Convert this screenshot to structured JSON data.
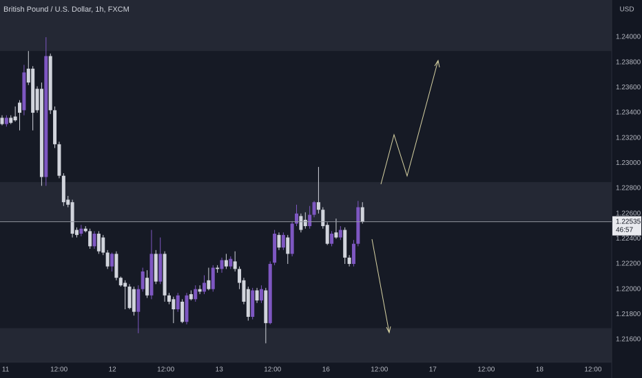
{
  "chart_data": {
    "type": "candlestick",
    "title": "British Pound / U.S. Dollar, 1h, FXCM",
    "currency": "USD",
    "open": [
      1.2336,
      1.2331,
      1.2336,
      1.2337,
      1.2348,
      1.2342,
      1.2375,
      1.2375,
      1.2359,
      1.2359,
      1.2289,
      1.2385,
      1.2342,
      1.2315,
      1.229,
      1.2271,
      1.2269,
      1.2247,
      1.2244,
      1.2248,
      1.2246,
      1.2234,
      1.2244,
      1.2241,
      1.2229,
      1.2218,
      1.2228,
      1.2209,
      1.2205,
      1.2202,
      1.22,
      1.2182,
      1.22,
      1.2209,
      1.2195,
      1.2228,
      1.2206,
      1.2228,
      1.2195,
      1.2192,
      1.2184,
      1.219,
      1.2174,
      1.2196,
      1.2192,
      1.22,
      1.2198,
      1.2207,
      1.22,
      1.2217,
      1.2216,
      1.2223,
      1.2218,
      1.2222,
      1.2216,
      1.2207,
      1.22,
      1.2178,
      1.2199,
      1.2191,
      1.2199,
      1.2173,
      1.2221,
      1.2243,
      1.2233,
      1.2241,
      1.2228,
      1.2252,
      1.2258,
      1.2255,
      1.225,
      1.2259,
      1.2269,
      1.2263,
      1.2251,
      1.2236,
      1.2245,
      1.2241,
      1.2247,
      1.2225,
      1.222,
      1.2236,
      1.2265
    ],
    "high": [
      1.2338,
      1.2338,
      1.2338,
      1.2345,
      1.235,
      1.2378,
      1.2389,
      1.2377,
      1.2361,
      1.2364,
      1.24,
      1.2387,
      1.2345,
      1.2317,
      1.2292,
      1.2274,
      1.2271,
      1.2249,
      1.2251,
      1.225,
      1.2248,
      1.2246,
      1.2246,
      1.2243,
      1.2231,
      1.2229,
      1.223,
      1.221,
      1.2207,
      1.2204,
      1.2202,
      1.2203,
      1.2217,
      1.2215,
      1.2247,
      1.2231,
      1.2241,
      1.223,
      1.2197,
      1.2194,
      1.2197,
      1.2192,
      1.2197,
      1.2199,
      1.2203,
      1.2203,
      1.2211,
      1.2217,
      1.2219,
      1.2219,
      1.2225,
      1.2228,
      1.2226,
      1.223,
      1.2218,
      1.2209,
      1.2202,
      1.2201,
      1.2201,
      1.2203,
      1.2201,
      1.2222,
      1.2247,
      1.2245,
      1.2245,
      1.2243,
      1.2254,
      1.2267,
      1.226,
      1.2261,
      1.2266,
      1.227,
      1.2297,
      1.2265,
      1.2253,
      1.2246,
      1.2256,
      1.225,
      1.2249,
      1.2227,
      1.2239,
      1.227,
      1.2269
    ],
    "low": [
      1.233,
      1.2329,
      1.2331,
      1.2333,
      1.2326,
      1.2338,
      1.2362,
      1.2326,
      1.234,
      1.2282,
      1.2282,
      1.2339,
      1.2312,
      1.2288,
      1.2266,
      1.2265,
      1.2241,
      1.2241,
      1.2242,
      1.2245,
      1.2232,
      1.2232,
      1.2228,
      1.2227,
      1.2216,
      1.2214,
      1.2207,
      1.2202,
      1.2184,
      1.2184,
      1.2179,
      1.2165,
      1.2198,
      1.2193,
      1.2192,
      1.2204,
      1.2204,
      1.219,
      1.2188,
      1.2173,
      1.2182,
      1.2173,
      1.2172,
      1.2191,
      1.219,
      1.2196,
      1.2196,
      1.2199,
      1.2198,
      1.2213,
      1.2213,
      1.2216,
      1.2216,
      1.2214,
      1.22,
      1.2188,
      1.2175,
      1.2176,
      1.2189,
      1.2189,
      1.2157,
      1.2172,
      1.2219,
      1.2231,
      1.2231,
      1.222,
      1.2226,
      1.225,
      1.2245,
      1.2248,
      1.2248,
      1.2257,
      1.226,
      1.2248,
      1.2235,
      1.2234,
      1.224,
      1.2239,
      1.222,
      1.2218,
      1.2218,
      1.2234,
      1.2252
    ],
    "close": [
      1.2331,
      1.2336,
      1.2332,
      1.2334,
      1.234,
      1.2372,
      1.2364,
      1.234,
      1.2342,
      1.2289,
      1.2385,
      1.2342,
      1.2315,
      1.229,
      1.2269,
      1.2267,
      1.2244,
      1.2243,
      1.2248,
      1.2246,
      1.2234,
      1.2244,
      1.223,
      1.2229,
      1.2218,
      1.2228,
      1.2209,
      1.2203,
      1.2202,
      1.2185,
      1.2182,
      1.22,
      1.2214,
      1.2195,
      1.2228,
      1.2206,
      1.2228,
      1.2195,
      1.219,
      1.2184,
      1.2195,
      1.2174,
      1.2195,
      1.2192,
      1.22,
      1.2198,
      1.2205,
      1.22,
      1.2217,
      1.2216,
      1.2223,
      1.2218,
      1.2224,
      1.2216,
      1.2205,
      1.219,
      1.2178,
      1.2199,
      1.2191,
      1.22,
      1.2173,
      1.222,
      1.2244,
      1.2233,
      1.2243,
      1.2228,
      1.2252,
      1.226,
      1.2247,
      1.225,
      1.2259,
      1.2269,
      1.2263,
      1.225,
      1.2236,
      1.2244,
      1.2241,
      1.2247,
      1.2225,
      1.222,
      1.2236,
      1.2265,
      1.22535
    ],
    "up_color": "#7e57c2",
    "down_color": "#d1d4dc",
    "last_price": 1.22535,
    "countdown": "46:57",
    "zones": [
      [
        1.2389,
        1.243
      ],
      [
        1.2254,
        1.2285
      ],
      [
        1.2142,
        1.2169
      ]
    ],
    "xlim": [
      -0.47,
      138.7
    ],
    "xticks": [
      {
        "value": 0.8,
        "label": "11"
      },
      {
        "value": 12.95,
        "label": "12:00"
      },
      {
        "value": 25.1,
        "label": "12"
      },
      {
        "value": 37.25,
        "label": "12:00"
      },
      {
        "value": 49.4,
        "label": "13"
      },
      {
        "value": 61.55,
        "label": "12:00"
      },
      {
        "value": 73.7,
        "label": "16"
      },
      {
        "value": 85.85,
        "label": "12:00"
      },
      {
        "value": 98.0,
        "label": "17"
      },
      {
        "value": 110.15,
        "label": "12:00"
      },
      {
        "value": 122.3,
        "label": "18"
      },
      {
        "value": 134.45,
        "label": "12:00"
      }
    ],
    "ylim": [
      1.2142,
      1.24295
    ],
    "yticks": [
      {
        "value": 1.216,
        "label": "1.21600"
      },
      {
        "value": 1.218,
        "label": "1.21800"
      },
      {
        "value": 1.22,
        "label": "1.22000"
      },
      {
        "value": 1.222,
        "label": "1.22200"
      },
      {
        "value": 1.224,
        "label": "1.22400"
      },
      {
        "value": 1.226,
        "label": "1.22600"
      },
      {
        "value": 1.228,
        "label": "1.22800"
      },
      {
        "value": 1.23,
        "label": "1.23000"
      },
      {
        "value": 1.232,
        "label": "1.23200"
      },
      {
        "value": 1.234,
        "label": "1.23400"
      },
      {
        "value": 1.236,
        "label": "1.23600"
      },
      {
        "value": 1.238,
        "label": "1.23800"
      },
      {
        "value": 1.24,
        "label": "1.24000"
      }
    ],
    "grid": false
  }
}
